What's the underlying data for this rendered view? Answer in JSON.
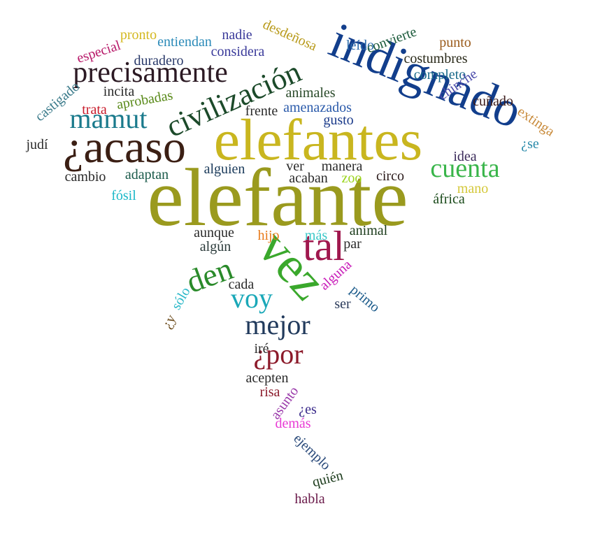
{
  "words": [
    {
      "text": "elefante",
      "color": "#9a9a1e"
    },
    {
      "text": "elefantes",
      "color": "#c9b61f"
    },
    {
      "text": "indignado",
      "color": "#123e8c"
    },
    {
      "text": "¿acaso",
      "color": "#3b1f14"
    },
    {
      "text": "precisamente",
      "color": "#2c1a24"
    },
    {
      "text": "civilización",
      "color": "#1c4a2a"
    },
    {
      "text": "mamut",
      "color": "#1a7a8c"
    },
    {
      "text": "cuenta",
      "color": "#39b54a"
    },
    {
      "text": "vez",
      "color": "#3aa82c"
    },
    {
      "text": "tal",
      "color": "#a0184e"
    },
    {
      "text": "den",
      "color": "#2a8a2a"
    },
    {
      "text": "voy",
      "color": "#1aa8b8"
    },
    {
      "text": "mejor",
      "color": "#213a5c"
    },
    {
      "text": "¿por",
      "color": "#8c1a2a"
    },
    {
      "text": "pronto",
      "color": "#d4b820"
    },
    {
      "text": "entiendan",
      "color": "#2a8ab8"
    },
    {
      "text": "nadie",
      "color": "#3a3a9a"
    },
    {
      "text": "considera",
      "color": "#3a3a9a"
    },
    {
      "text": "desdeñosa",
      "color": "#b89a1a"
    },
    {
      "text": "leído",
      "color": "#2a6aaa"
    },
    {
      "text": "convierte",
      "color": "#1a5a3a"
    },
    {
      "text": "punto",
      "color": "#9a5a1a"
    },
    {
      "text": "especial",
      "color": "#b81a6a"
    },
    {
      "text": "duradero",
      "color": "#2a3a6a"
    },
    {
      "text": "costumbres",
      "color": "#2a2a1a"
    },
    {
      "text": "completo",
      "color": "#1a6a8a"
    },
    {
      "text": "chinche",
      "color": "#4a4aaa"
    },
    {
      "text": "castigado",
      "color": "#3a7a8a"
    },
    {
      "text": "incita",
      "color": "#2a2a2a"
    },
    {
      "text": "aprobadas",
      "color": "#5a8a1a"
    },
    {
      "text": "animales",
      "color": "#2a4a2a"
    },
    {
      "text": "amenazados",
      "color": "#2a5aaa"
    },
    {
      "text": "cuñado",
      "color": "#3a1a1a"
    },
    {
      "text": "trata",
      "color": "#c81a2a"
    },
    {
      "text": "frente",
      "color": "#2a2a2a"
    },
    {
      "text": "gusto",
      "color": "#1a3a8a"
    },
    {
      "text": "extinga",
      "color": "#c88a3a"
    },
    {
      "text": "judí",
      "color": "#2a2a2a"
    },
    {
      "text": "¿se",
      "color": "#2a8aaa"
    },
    {
      "text": "idea",
      "color": "#3a2a5a"
    },
    {
      "text": "cambio",
      "color": "#2a2a2a"
    },
    {
      "text": "adaptan",
      "color": "#1a5a4a"
    },
    {
      "text": "alguien",
      "color": "#1a3a5a"
    },
    {
      "text": "ver",
      "color": "#2a2a2a"
    },
    {
      "text": "manera",
      "color": "#2a2a2a"
    },
    {
      "text": "acaban",
      "color": "#2a2a2a"
    },
    {
      "text": "zoo",
      "color": "#9ad41a"
    },
    {
      "text": "circo",
      "color": "#2a1a1a"
    },
    {
      "text": "mano",
      "color": "#d4c83a"
    },
    {
      "text": "fósil",
      "color": "#1ab8c8"
    },
    {
      "text": "áfrica",
      "color": "#1a4a1a"
    },
    {
      "text": "aunque",
      "color": "#2a2a2a"
    },
    {
      "text": "hijo",
      "color": "#e87a1a"
    },
    {
      "text": "más",
      "color": "#3ac8c8"
    },
    {
      "text": "animal",
      "color": "#1a3a1a"
    },
    {
      "text": "algún",
      "color": "#2a3a3a"
    },
    {
      "text": "par",
      "color": "#2a2a2a"
    },
    {
      "text": "alguna",
      "color": "#c81ab8"
    },
    {
      "text": "cada",
      "color": "#2a2a2a"
    },
    {
      "text": "sólo",
      "color": "#2ab8c8"
    },
    {
      "text": "¿y",
      "color": "#6a4a1a"
    },
    {
      "text": "primo",
      "color": "#1a5a8a"
    },
    {
      "text": "ser",
      "color": "#2a3a5a"
    },
    {
      "text": "iré",
      "color": "#2a2a2a"
    },
    {
      "text": "acepten",
      "color": "#2a2a2a"
    },
    {
      "text": "risa",
      "color": "#8a1a2a"
    },
    {
      "text": "asunto",
      "color": "#9a3aaa"
    },
    {
      "text": "¿es",
      "color": "#3a2a8a"
    },
    {
      "text": "demás",
      "color": "#e83ad4"
    },
    {
      "text": "ejemplo",
      "color": "#2a4a7a"
    },
    {
      "text": "quién",
      "color": "#1a3a1a"
    },
    {
      "text": "habla",
      "color": "#6a1a4a"
    }
  ]
}
